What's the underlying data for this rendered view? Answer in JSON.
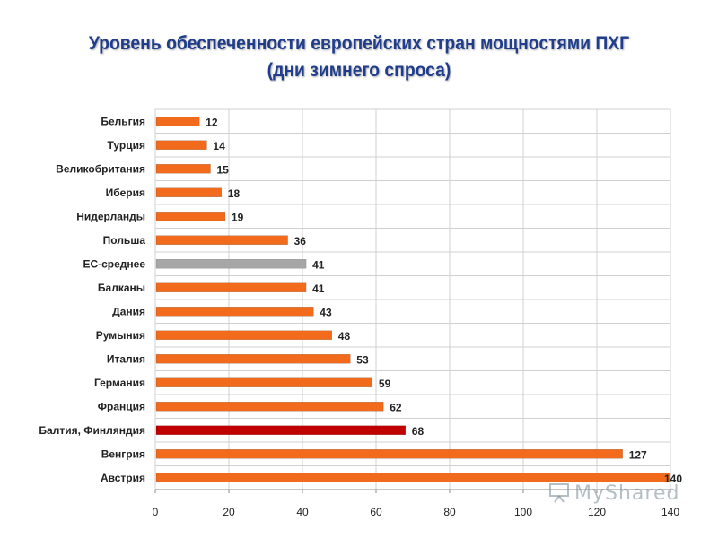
{
  "title_line1": "Уровень обеспеченности европейских стран мощностями ПХГ",
  "title_line2": "(дни зимнего спроса)",
  "watermark": "MyShared",
  "colors": {
    "default": "#f26a1b",
    "average": "#a6a6a6",
    "highlight": "#c00000",
    "grid": "#d0d0d0"
  },
  "chart_data": {
    "type": "bar",
    "orientation": "horizontal",
    "title": "Уровень обеспеченности европейских стран мощностями ПХГ (дни зимнего спроса)",
    "categories": [
      "Бельгия",
      "Турция",
      "Великобритания",
      "Иберия",
      "Нидерланды",
      "Польша",
      "ЕС-среднее",
      "Балканы",
      "Дания",
      "Румыния",
      "Италия",
      "Германия",
      "Франция",
      "Балтия, Финляндия",
      "Венгрия",
      "Австрия"
    ],
    "values": [
      12,
      14,
      15,
      18,
      19,
      36,
      41,
      41,
      43,
      48,
      53,
      59,
      62,
      68,
      127,
      140
    ],
    "bar_colors": [
      "default",
      "default",
      "default",
      "default",
      "default",
      "default",
      "average",
      "default",
      "default",
      "default",
      "default",
      "default",
      "default",
      "highlight",
      "default",
      "default"
    ],
    "xlim": [
      0,
      140
    ],
    "xticks": [
      0,
      20,
      40,
      60,
      80,
      100,
      120,
      140
    ],
    "grid": true,
    "data_labels": true
  }
}
